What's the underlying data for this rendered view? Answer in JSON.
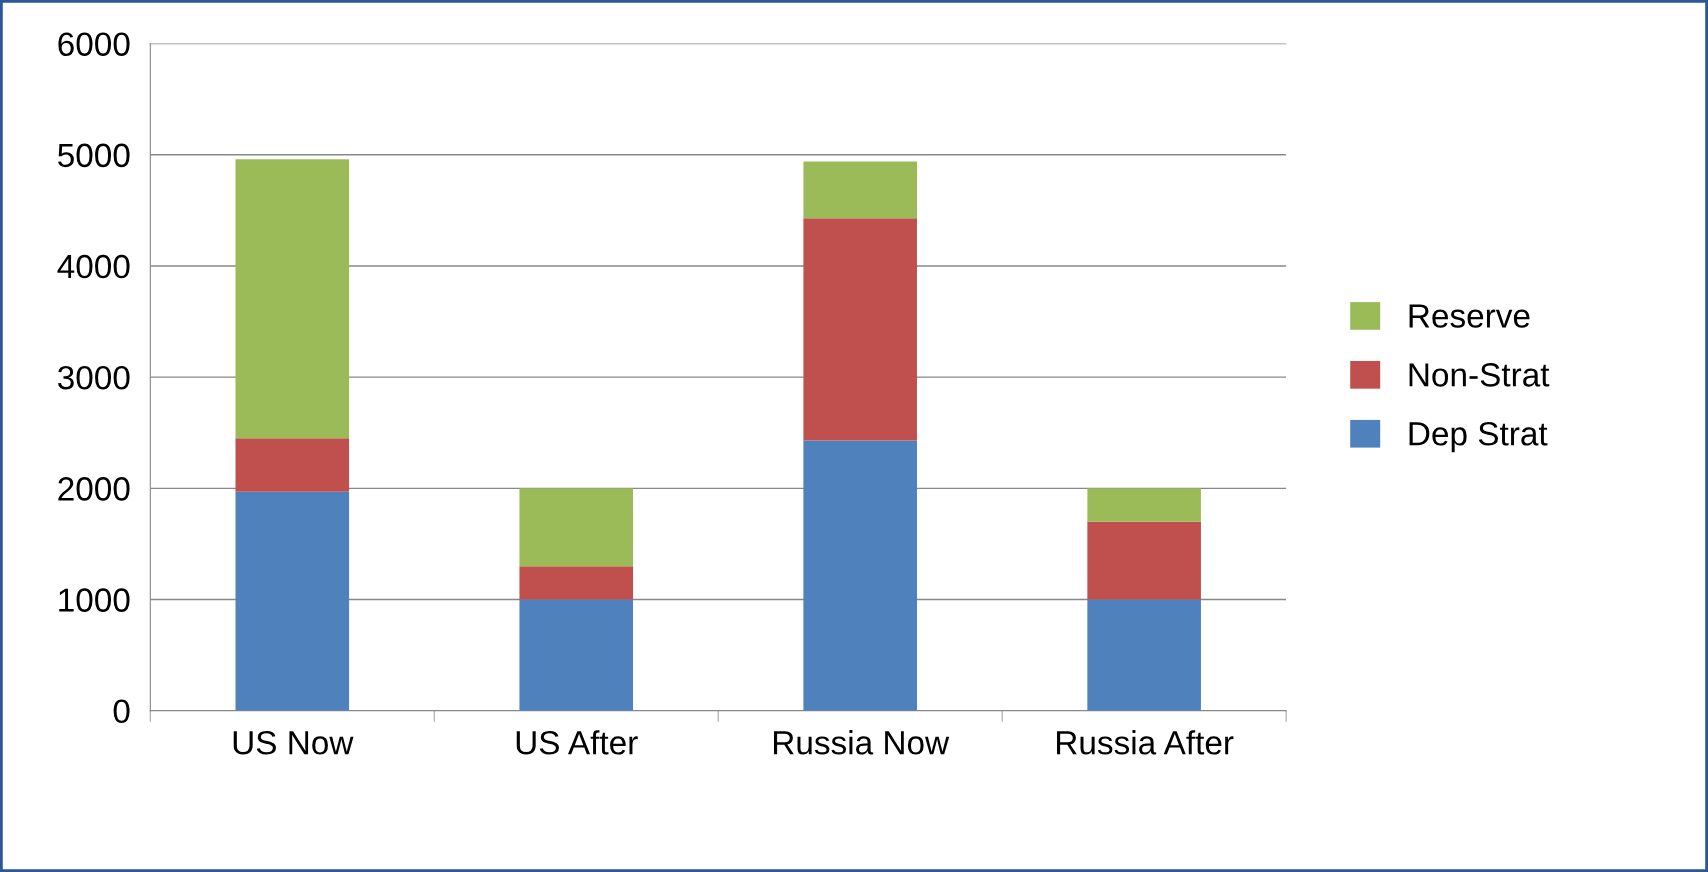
{
  "chart_data": {
    "type": "bar",
    "stacked": true,
    "categories": [
      "US Now",
      "US After",
      "Russia Now",
      "Russia After"
    ],
    "series": [
      {
        "name": "Dep Strat",
        "color": "#4f81bd",
        "values": [
          1970,
          1000,
          2430,
          1000
        ]
      },
      {
        "name": "Non-Strat",
        "color": "#c0504d",
        "values": [
          480,
          300,
          2000,
          700
        ]
      },
      {
        "name": "Reserve",
        "color": "#9bbb59",
        "values": [
          2510,
          700,
          510,
          300
        ]
      }
    ],
    "ylim": [
      0,
      6000
    ],
    "yticks": [
      0,
      1000,
      2000,
      3000,
      4000,
      5000,
      6000
    ],
    "grid": "y",
    "legend": "right"
  }
}
